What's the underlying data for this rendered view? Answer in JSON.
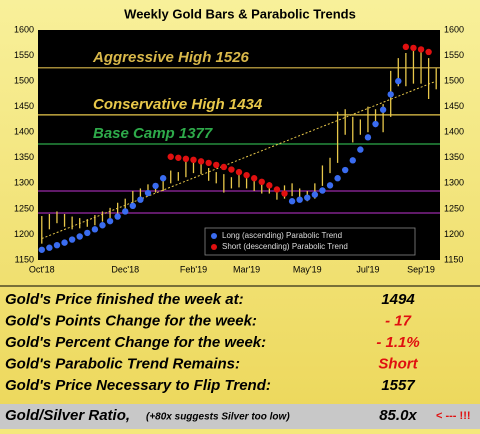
{
  "chart_data": {
    "type": "ohlc",
    "title": "Weekly Gold Bars & Parabolic Trends",
    "categories": [
      "Oct'18",
      null,
      null,
      null,
      null,
      null,
      null,
      null,
      null,
      null,
      null,
      "Dec'18",
      null,
      null,
      null,
      null,
      null,
      null,
      null,
      null,
      "Feb'19",
      null,
      null,
      null,
      null,
      null,
      null,
      "Mar'19",
      null,
      null,
      null,
      null,
      null,
      null,
      null,
      "May'19",
      null,
      null,
      null,
      null,
      null,
      null,
      null,
      "Jul'19",
      null,
      null,
      null,
      null,
      null,
      null,
      "Sep'19",
      null,
      null
    ],
    "high": [
      1236,
      1240,
      1245,
      1240,
      1235,
      1232,
      1230,
      1238,
      1245,
      1252,
      1262,
      1270,
      1285,
      1290,
      1298,
      1296,
      1305,
      1325,
      1322,
      1345,
      1350,
      1342,
      1330,
      1322,
      1318,
      1312,
      1318,
      1310,
      1305,
      1300,
      1302,
      1290,
      1296,
      1300,
      1290,
      1285,
      1300,
      1335,
      1350,
      1440,
      1445,
      1430,
      1425,
      1450,
      1445,
      1455,
      1520,
      1545,
      1555,
      1565,
      1560,
      1545,
      1525
    ],
    "low": [
      1182,
      1210,
      1222,
      1215,
      1210,
      1212,
      1215,
      1218,
      1225,
      1232,
      1240,
      1245,
      1255,
      1270,
      1280,
      1282,
      1285,
      1300,
      1305,
      1312,
      1320,
      1318,
      1305,
      1300,
      1282,
      1290,
      1292,
      1290,
      1285,
      1280,
      1280,
      1268,
      1270,
      1275,
      1268,
      1265,
      1270,
      1295,
      1320,
      1340,
      1395,
      1380,
      1395,
      1400,
      1410,
      1400,
      1430,
      1490,
      1490,
      1495,
      1495,
      1465,
      1484
    ],
    "bar_color": "#e8c84a",
    "series": [
      {
        "name": "Long (ascending) Parabolic Trend",
        "color": "#3a6cf0",
        "values": [
          1170,
          1174,
          1179,
          1184,
          1190,
          1196,
          1203,
          1210,
          1218,
          1226,
          1235,
          1245,
          1256,
          1268,
          1281,
          1295,
          1310,
          null,
          null,
          null,
          null,
          null,
          null,
          null,
          null,
          null,
          null,
          null,
          null,
          null,
          null,
          null,
          null,
          1265,
          1268,
          1272,
          1278,
          1286,
          1296,
          1310,
          1326,
          1345,
          1366,
          1390,
          1416,
          1444,
          1474,
          1500,
          null,
          null,
          null,
          null,
          null
        ]
      },
      {
        "name": "Short (descending) Parabolic Trend",
        "color": "#e01010",
        "values": [
          null,
          null,
          null,
          null,
          null,
          null,
          null,
          null,
          null,
          null,
          null,
          null,
          null,
          null,
          null,
          null,
          null,
          1352,
          1350,
          1348,
          1346,
          1343,
          1340,
          1336,
          1332,
          1327,
          1322,
          1316,
          1310,
          1303,
          1296,
          1288,
          1280,
          null,
          null,
          null,
          null,
          null,
          null,
          null,
          null,
          null,
          null,
          null,
          null,
          null,
          null,
          null,
          1567,
          1565,
          1562,
          1557,
          null
        ]
      }
    ],
    "trend_line": [
      1192,
      1500
    ],
    "levels": [
      {
        "label": "Aggressive High 1526",
        "value": 1526,
        "color": "#d9b84a"
      },
      {
        "label": "Conservative High 1434",
        "value": 1434,
        "color": "#e8c84a"
      },
      {
        "label": "Base Camp 1377",
        "value": 1377,
        "color": "#2eaa4a"
      },
      {
        "value": 1285,
        "color": "#9a2aa8"
      },
      {
        "value": 1242,
        "color": "#9a2aa8"
      }
    ],
    "ylim": [
      1150,
      1600
    ],
    "yticks": [
      1150,
      1200,
      1250,
      1300,
      1350,
      1400,
      1450,
      1500,
      1550,
      1600
    ]
  },
  "table": {
    "rows": [
      {
        "label": "Gold's Price finished the week at:",
        "value": "1494",
        "color": "#000000"
      },
      {
        "label": "Gold's Points Change for the week:",
        "value": "- 17",
        "color": "#e01010"
      },
      {
        "label": "Gold's Percent Change for the week:",
        "value": "- 1.1%",
        "color": "#e01010"
      },
      {
        "label": "Gold's Parabolic Trend Remains:",
        "value": "Short",
        "color": "#e01010"
      },
      {
        "label": "Gold's Price Necessary to Flip Trend:",
        "value": "1557",
        "color": "#000000"
      }
    ],
    "ratio": {
      "label": "Gold/Silver Ratio,",
      "note": "(+80x suggests Silver too low)",
      "value": "85.0x",
      "alert": "< --- !!!"
    }
  }
}
